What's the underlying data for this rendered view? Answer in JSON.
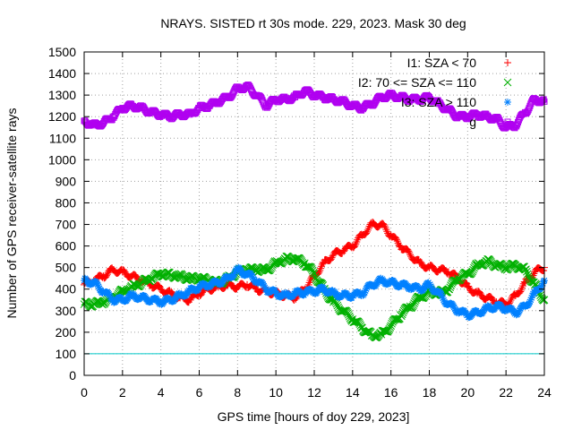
{
  "chart_data": {
    "type": "scatter",
    "title": "NRAYS. SISTED rt 30s mode. 229, 2023. Mask 30 deg",
    "xlabel": "GPS time [hours of doy 229, 2023]",
    "ylabel": "Number of GPS receiver-satellite rays",
    "xlim": [
      0,
      24
    ],
    "ylim": [
      0,
      1500
    ],
    "xticks": [
      "0",
      "2",
      "4",
      "6",
      "8",
      "10",
      "12",
      "14",
      "16",
      "18",
      "20",
      "22",
      "24"
    ],
    "yticks": [
      "0",
      "100",
      "200",
      "300",
      "400",
      "500",
      "600",
      "700",
      "800",
      "900",
      "1000",
      "1100",
      "1200",
      "1300",
      "1400",
      "1500"
    ],
    "grid": true,
    "legend_position": "top-right",
    "threshold_line": {
      "y": 100,
      "color": "#00c8c8"
    },
    "series": [
      {
        "name": "I1: SZA < 70",
        "color": "#ff0000",
        "marker": "plus",
        "points": [
          [
            0,
            420
          ],
          [
            0.5,
            440
          ],
          [
            1,
            460
          ],
          [
            1.5,
            490
          ],
          [
            2,
            480
          ],
          [
            2.5,
            460
          ],
          [
            3,
            440
          ],
          [
            3.5,
            420
          ],
          [
            4,
            400
          ],
          [
            4.5,
            380
          ],
          [
            5,
            360
          ],
          [
            5.5,
            350
          ],
          [
            6,
            380
          ],
          [
            6.5,
            400
          ],
          [
            7,
            410
          ],
          [
            7.5,
            420
          ],
          [
            8,
            410
          ],
          [
            8.5,
            420
          ],
          [
            9,
            400
          ],
          [
            9.5,
            390
          ],
          [
            10,
            380
          ],
          [
            10.5,
            370
          ],
          [
            11,
            360
          ],
          [
            11.5,
            400
          ],
          [
            12,
            460
          ],
          [
            12.5,
            520
          ],
          [
            13,
            560
          ],
          [
            13.5,
            580
          ],
          [
            14,
            600
          ],
          [
            14.5,
            650
          ],
          [
            15,
            700
          ],
          [
            15.5,
            700
          ],
          [
            16,
            650
          ],
          [
            16.5,
            600
          ],
          [
            17,
            560
          ],
          [
            17.5,
            520
          ],
          [
            18,
            500
          ],
          [
            18.5,
            490
          ],
          [
            19,
            480
          ],
          [
            19.5,
            450
          ],
          [
            20,
            410
          ],
          [
            20.5,
            380
          ],
          [
            21,
            360
          ],
          [
            21.5,
            340
          ],
          [
            22,
            330
          ],
          [
            22.5,
            370
          ],
          [
            23,
            430
          ],
          [
            23.5,
            480
          ],
          [
            24,
            500
          ]
        ]
      },
      {
        "name": "I2: 70 <= SZA <= 110",
        "color": "#00b000",
        "marker": "cross",
        "points": [
          [
            0,
            330
          ],
          [
            0.5,
            330
          ],
          [
            1,
            340
          ],
          [
            1.5,
            360
          ],
          [
            2,
            390
          ],
          [
            2.5,
            410
          ],
          [
            3,
            430
          ],
          [
            3.5,
            450
          ],
          [
            4,
            470
          ],
          [
            4.5,
            465
          ],
          [
            5,
            460
          ],
          [
            5.5,
            450
          ],
          [
            6,
            450
          ],
          [
            6.5,
            440
          ],
          [
            7,
            430
          ],
          [
            7.5,
            450
          ],
          [
            8,
            480
          ],
          [
            8.5,
            490
          ],
          [
            9,
            490
          ],
          [
            9.5,
            490
          ],
          [
            10,
            520
          ],
          [
            10.5,
            540
          ],
          [
            11,
            540
          ],
          [
            11.5,
            520
          ],
          [
            12,
            470
          ],
          [
            12.5,
            400
          ],
          [
            13,
            340
          ],
          [
            13.5,
            300
          ],
          [
            14,
            260
          ],
          [
            14.5,
            220
          ],
          [
            15,
            185
          ],
          [
            15.5,
            190
          ],
          [
            16,
            230
          ],
          [
            16.5,
            280
          ],
          [
            17,
            320
          ],
          [
            17.5,
            360
          ],
          [
            18,
            390
          ],
          [
            18.5,
            380
          ],
          [
            19,
            400
          ],
          [
            19.5,
            450
          ],
          [
            20,
            470
          ],
          [
            20.5,
            510
          ],
          [
            21,
            530
          ],
          [
            21.5,
            510
          ],
          [
            22,
            500
          ],
          [
            22.5,
            510
          ],
          [
            23,
            490
          ],
          [
            23.5,
            420
          ],
          [
            24,
            350
          ]
        ]
      },
      {
        "name": "I3: SZA > 110",
        "color": "#0080ff",
        "marker": "star",
        "points": [
          [
            0,
            440
          ],
          [
            0.5,
            430
          ],
          [
            1,
            390
          ],
          [
            1.5,
            350
          ],
          [
            2,
            350
          ],
          [
            2.5,
            370
          ],
          [
            3,
            360
          ],
          [
            3.5,
            350
          ],
          [
            4,
            340
          ],
          [
            4.5,
            350
          ],
          [
            5,
            370
          ],
          [
            5.5,
            390
          ],
          [
            6,
            410
          ],
          [
            6.5,
            420
          ],
          [
            7,
            430
          ],
          [
            7.5,
            450
          ],
          [
            8,
            490
          ],
          [
            8.5,
            470
          ],
          [
            9,
            440
          ],
          [
            9.5,
            400
          ],
          [
            10,
            380
          ],
          [
            10.5,
            370
          ],
          [
            11,
            380
          ],
          [
            11.5,
            385
          ],
          [
            12,
            390
          ],
          [
            12.5,
            400
          ],
          [
            13,
            380
          ],
          [
            13.5,
            370
          ],
          [
            14,
            370
          ],
          [
            14.5,
            380
          ],
          [
            15,
            420
          ],
          [
            15.5,
            440
          ],
          [
            16,
            430
          ],
          [
            16.5,
            420
          ],
          [
            17,
            410
          ],
          [
            17.5,
            400
          ],
          [
            18,
            420
          ],
          [
            18.5,
            380
          ],
          [
            19,
            330
          ],
          [
            19.5,
            300
          ],
          [
            20,
            280
          ],
          [
            20.5,
            290
          ],
          [
            21,
            310
          ],
          [
            21.5,
            320
          ],
          [
            22,
            310
          ],
          [
            22.5,
            290
          ],
          [
            23,
            320
          ],
          [
            23.5,
            380
          ],
          [
            24,
            440
          ]
        ]
      },
      {
        "name": "g",
        "color": "#b000f0",
        "marker": "square",
        "points": [
          [
            0,
            1180
          ],
          [
            0.5,
            1160
          ],
          [
            1,
            1170
          ],
          [
            1.5,
            1200
          ],
          [
            2,
            1240
          ],
          [
            2.5,
            1250
          ],
          [
            3,
            1240
          ],
          [
            3.5,
            1220
          ],
          [
            4,
            1210
          ],
          [
            4.5,
            1200
          ],
          [
            5,
            1210
          ],
          [
            5.5,
            1210
          ],
          [
            6,
            1240
          ],
          [
            6.5,
            1250
          ],
          [
            7,
            1270
          ],
          [
            7.5,
            1290
          ],
          [
            8,
            1330
          ],
          [
            8.5,
            1340
          ],
          [
            9,
            1300
          ],
          [
            9.5,
            1250
          ],
          [
            10,
            1280
          ],
          [
            10.5,
            1280
          ],
          [
            11,
            1290
          ],
          [
            11.5,
            1320
          ],
          [
            12,
            1300
          ],
          [
            12.5,
            1290
          ],
          [
            13,
            1280
          ],
          [
            13.5,
            1270
          ],
          [
            14,
            1250
          ],
          [
            14.5,
            1240
          ],
          [
            15,
            1260
          ],
          [
            15.5,
            1290
          ],
          [
            16,
            1300
          ],
          [
            16.5,
            1290
          ],
          [
            17,
            1280
          ],
          [
            17.5,
            1280
          ],
          [
            18,
            1290
          ],
          [
            18.5,
            1260
          ],
          [
            19,
            1230
          ],
          [
            19.5,
            1200
          ],
          [
            20,
            1200
          ],
          [
            20.5,
            1210
          ],
          [
            21,
            1200
          ],
          [
            21.5,
            1190
          ],
          [
            22,
            1150
          ],
          [
            22.5,
            1160
          ],
          [
            23,
            1220
          ],
          [
            23.5,
            1280
          ],
          [
            24,
            1270
          ]
        ]
      }
    ]
  }
}
